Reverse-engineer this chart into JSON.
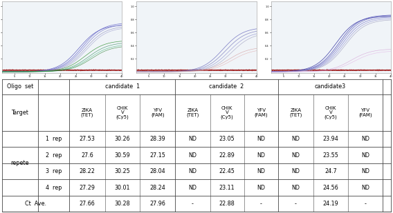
{
  "rows": [
    [
      "1  rep",
      "27.53",
      "30.26",
      "28.39",
      "ND",
      "23.05",
      "ND",
      "ND",
      "23.94",
      "ND"
    ],
    [
      "2  rep",
      "27.6",
      "30.59",
      "27.15",
      "ND",
      "22.89",
      "ND",
      "ND",
      "23.55",
      "ND"
    ],
    [
      "3  rep",
      "28.22",
      "30.25",
      "28.04",
      "ND",
      "22.45",
      "ND",
      "ND",
      "24.7",
      "ND"
    ],
    [
      "4  rep",
      "27.29",
      "30.01",
      "28.24",
      "ND",
      "23.11",
      "ND",
      "ND",
      "24.56",
      "ND"
    ]
  ],
  "footer": [
    "27.66",
    "30.28",
    "27.96",
    "-",
    "22.88",
    "-",
    "-",
    "24.19",
    "-"
  ],
  "plot_bg": "#ffffff",
  "plot_border": "#b0b8c8",
  "plot_left_bar": "#8090a8"
}
